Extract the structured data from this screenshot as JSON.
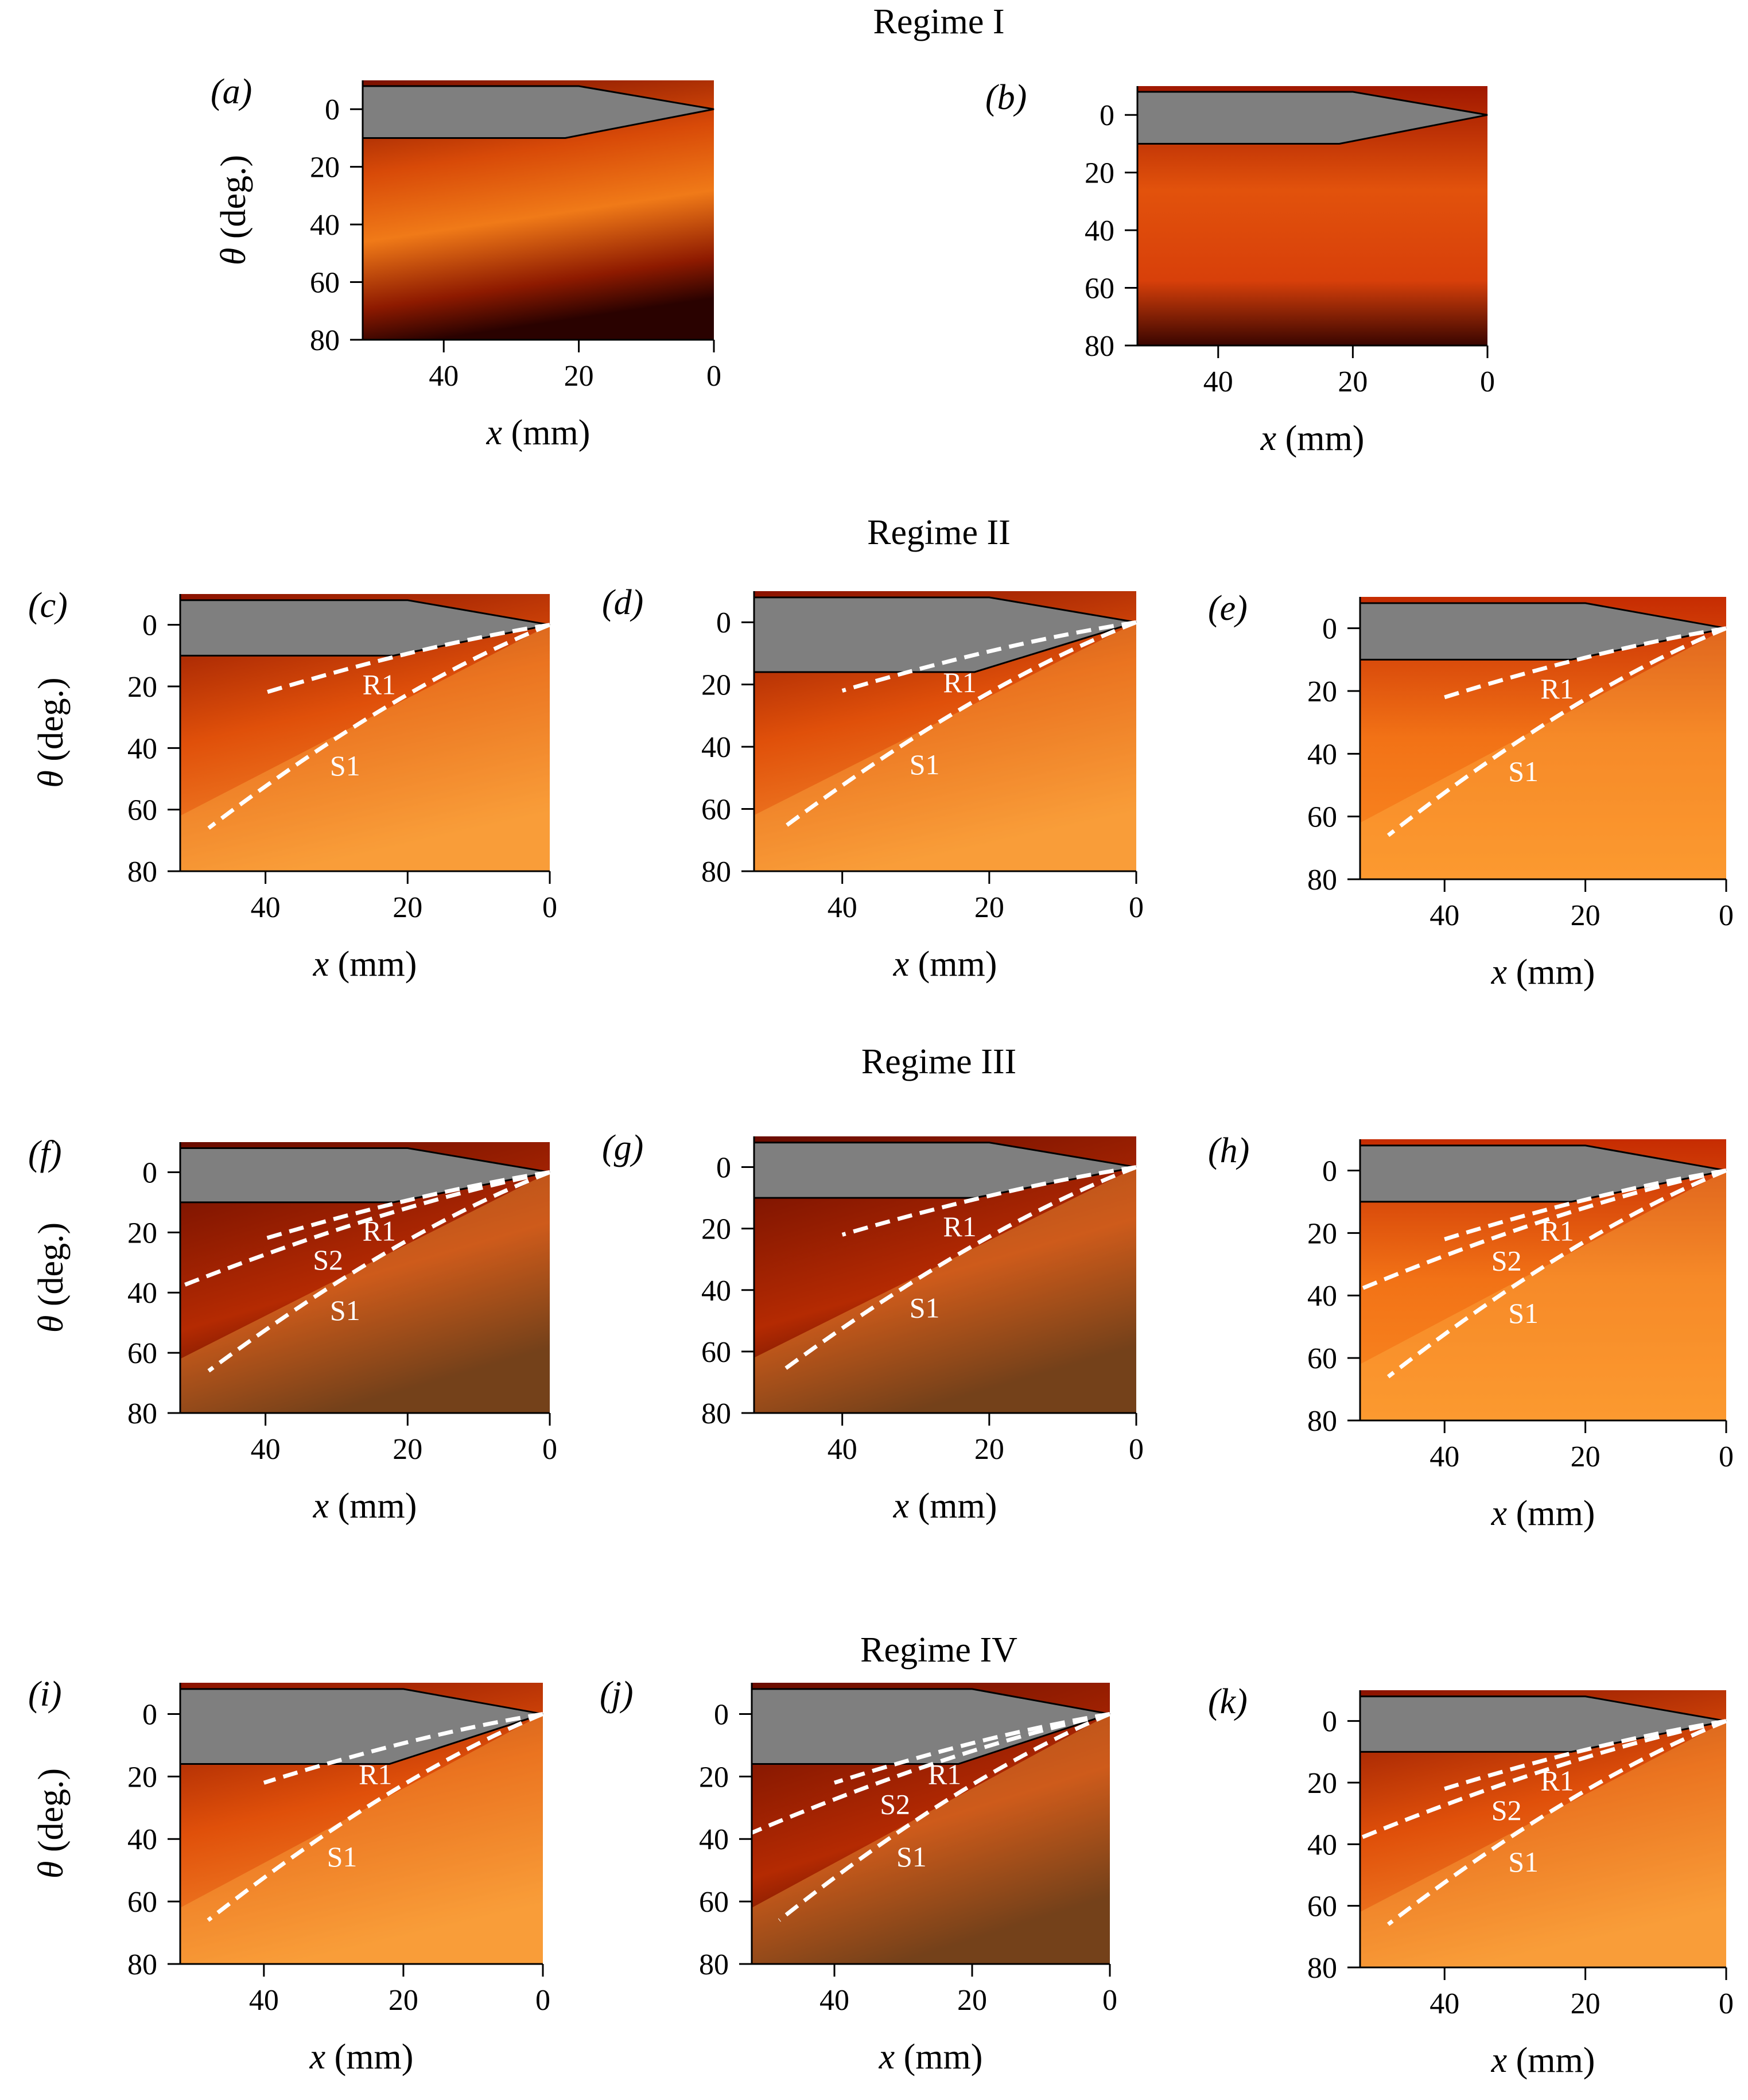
{
  "figure": {
    "regime_titles": [
      "Regime I",
      "Regime II",
      "Regime III",
      "Regime IV"
    ],
    "x_axis_label": {
      "var": "x",
      "unit": " (mm)"
    },
    "y_axis_label": {
      "var": "θ",
      "unit": " (deg.)"
    },
    "x_ticks": [
      40,
      20,
      0
    ],
    "y_ticks": [
      0,
      20,
      40,
      60,
      80
    ],
    "x_range_mm": [
      52,
      0
    ],
    "y_range_deg": [
      -10,
      80
    ],
    "colormap": [
      "#1a0000",
      "#5a0a00",
      "#9e1a00",
      "#d43a00",
      "#f06a10",
      "#ffb040",
      "#ffe080"
    ],
    "wedge_color": "#7f7f7f",
    "dashed_line_color": "#ffffff"
  },
  "panels": [
    {
      "id": "a",
      "label": "(a)",
      "regime": "Regime I",
      "lines": []
    },
    {
      "id": "b",
      "label": "(b)",
      "regime": "Regime I",
      "lines": []
    },
    {
      "id": "c",
      "label": "(c)",
      "regime": "Regime II",
      "lines": [
        "R1",
        "S1"
      ]
    },
    {
      "id": "d",
      "label": "(d)",
      "regime": "Regime II",
      "lines": [
        "R1",
        "S1"
      ]
    },
    {
      "id": "e",
      "label": "(e)",
      "regime": "Regime II",
      "lines": [
        "R1",
        "S1"
      ]
    },
    {
      "id": "f",
      "label": "(f)",
      "regime": "Regime III",
      "lines": [
        "R1",
        "S2",
        "S1"
      ]
    },
    {
      "id": "g",
      "label": "(g)",
      "regime": "Regime III",
      "lines": [
        "R1",
        "S1"
      ]
    },
    {
      "id": "h",
      "label": "(h)",
      "regime": "Regime III",
      "lines": [
        "R1",
        "S2",
        "S1"
      ]
    },
    {
      "id": "i",
      "label": "(i)",
      "regime": "Regime IV",
      "lines": [
        "R1",
        "S1"
      ]
    },
    {
      "id": "j",
      "label": "(j)",
      "regime": "Regime IV",
      "lines": [
        "R1",
        "S2",
        "S1"
      ]
    },
    {
      "id": "k",
      "label": "(k)",
      "regime": "Regime IV",
      "lines": [
        "R1",
        "S2",
        "S1"
      ]
    }
  ]
}
